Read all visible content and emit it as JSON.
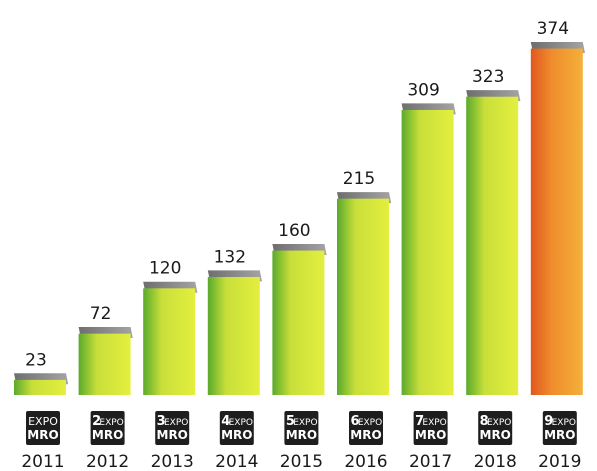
{
  "chart_data": {
    "type": "bar",
    "categories": [
      "2011",
      "2012",
      "2013",
      "2014",
      "2015",
      "2016",
      "2017",
      "2018",
      "2019"
    ],
    "values": [
      23,
      72,
      120,
      132,
      160,
      215,
      309,
      323,
      374
    ],
    "logos": [
      {
        "edition": "",
        "top": "EXPO",
        "bottom": "MRO"
      },
      {
        "edition": "2",
        "top": "EXPO",
        "bottom": "MRO"
      },
      {
        "edition": "3",
        "top": "EXPO",
        "bottom": "MRO"
      },
      {
        "edition": "4",
        "top": "EXPO",
        "bottom": "MRO"
      },
      {
        "edition": "5",
        "top": "EXPO",
        "bottom": "MRO"
      },
      {
        "edition": "6",
        "top": "EXPO",
        "bottom": "MRO"
      },
      {
        "edition": "7",
        "top": "EXPO",
        "bottom": "MRO"
      },
      {
        "edition": "8",
        "top": "EXPO",
        "bottom": "MRO"
      },
      {
        "edition": "9",
        "top": "EXPO",
        "bottom": "MRO"
      }
    ],
    "title": "",
    "xlabel": "",
    "ylabel": "",
    "ylim": [
      0,
      374
    ],
    "grid": false,
    "colors": {
      "bar_front_light": "#e4ef3e",
      "bar_front_dark": "#5aaa2c",
      "bar_top": "#8c8c8c",
      "highlight_front_light": "#f4b03a",
      "highlight_front_dark": "#e0581f",
      "edition_number": "#f2c200"
    }
  }
}
